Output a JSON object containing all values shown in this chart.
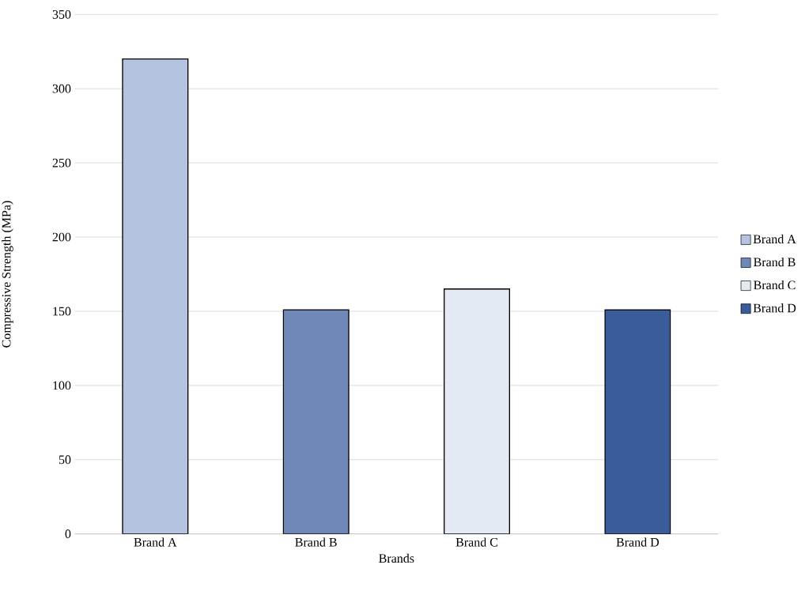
{
  "chart_data": {
    "type": "bar",
    "xlabel": "Brands",
    "ylabel": "Compressive Strength (MPa)",
    "categories": [
      "Brand A",
      "Brand B",
      "Brand C",
      "Brand D"
    ],
    "series": [
      {
        "name": "Brand A",
        "color": "#b4c4e0",
        "values": [
          320,
          null,
          null,
          null
        ]
      },
      {
        "name": "Brand B",
        "color": "#7088b8",
        "values": [
          null,
          151,
          null,
          null
        ]
      },
      {
        "name": "Brand C",
        "color": "#e4eaf4",
        "values": [
          null,
          null,
          165,
          null
        ]
      },
      {
        "name": "Brand D",
        "color": "#3a5c9a",
        "values": [
          null,
          null,
          null,
          151
        ]
      }
    ],
    "ylim": [
      0,
      350
    ],
    "yticks": [
      0,
      50,
      100,
      150,
      200,
      250,
      300,
      350
    ],
    "grid": "y",
    "legend": "right"
  }
}
